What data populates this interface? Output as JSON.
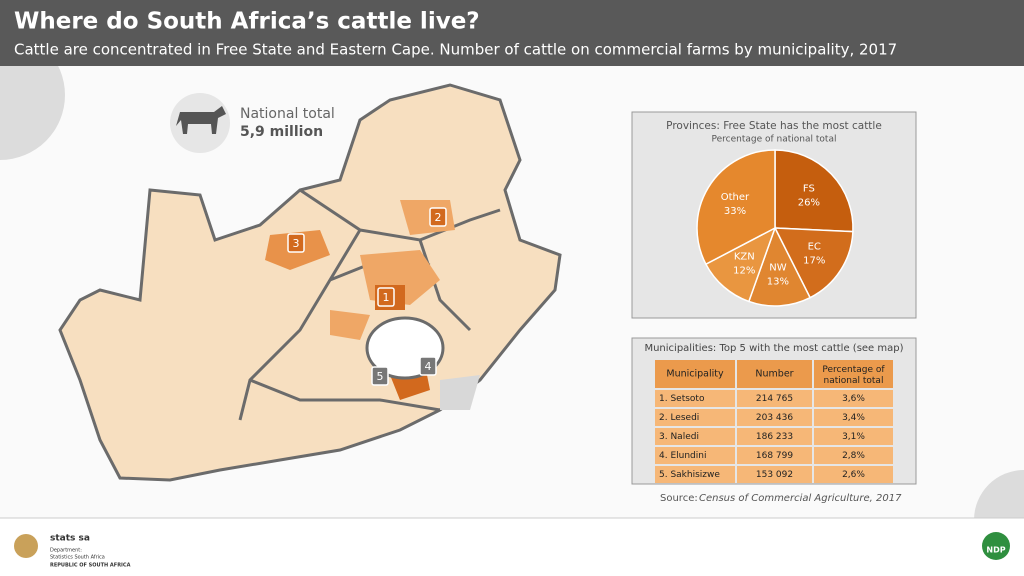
{
  "header": {
    "title": "Where do South Africa’s cattle live?",
    "subtitle": "Cattle are concentrated in Free State and Eastern Cape. Number of cattle on commercial farms by municipality, 2017"
  },
  "map": {
    "national_total_label": "National total",
    "national_total_value": "5,9 million",
    "markers": [
      "1",
      "2",
      "3",
      "4",
      "5"
    ]
  },
  "chart_data": {
    "type": "pie",
    "title": "Provinces: Free State has the most cattle",
    "subtitle": "Percentage of national total",
    "categories": [
      "FS",
      "EC",
      "NW",
      "KZN",
      "Other"
    ],
    "values": [
      26,
      17,
      13,
      12,
      33
    ],
    "value_labels": [
      "26%",
      "17%",
      "13%",
      "12%",
      "33%"
    ],
    "colors": [
      "#c55e0e",
      "#d26d1c",
      "#e08630",
      "#e99640",
      "#e5882d"
    ]
  },
  "table": {
    "title": "Municipalities: Top 5 with the most cattle (see map)",
    "columns": [
      "Municipality",
      "Number",
      "Percentage of national total"
    ],
    "rows": [
      [
        "1. Setsoto",
        "214 765",
        "3,6%"
      ],
      [
        "2. Lesedi",
        "203 436",
        "3,4%"
      ],
      [
        "3. Naledi",
        "186 233",
        "3,1%"
      ],
      [
        "4. Elundini",
        "168 799",
        "2,8%"
      ],
      [
        "5. Sakhisizwe",
        "153 092",
        "2,6%"
      ]
    ]
  },
  "source": {
    "label": "Source:",
    "text": "Census of Commercial Agriculture, 2017"
  },
  "footer": {
    "org": "stats sa",
    "department": "Department:",
    "department_name": "Statistics South Africa",
    "country": "REPUBLIC OF SOUTH AFRICA",
    "ndp": "NDP"
  }
}
